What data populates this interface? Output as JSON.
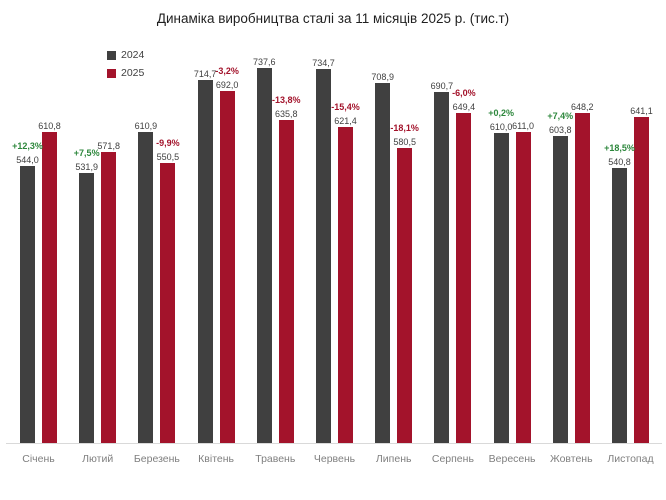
{
  "title": "Динаміка виробництва сталі за 11 місяців 2025 р. (тис.т)",
  "colors": {
    "bar_2024": "#404040",
    "bar_2025": "#a3132b",
    "positive_pct": "#2d873c",
    "negative_pct": "#a3132b",
    "value_label": "#404040",
    "axis_label": "#7f7f7f",
    "baseline": "#d9d9d9"
  },
  "legend": {
    "items": [
      {
        "label": "2024",
        "color": "#404040"
      },
      {
        "label": "2025",
        "color": "#a3132b"
      }
    ]
  },
  "chart_data": {
    "type": "bar",
    "title": "Динаміка виробництва сталі за 11 місяців 2025 р. (тис.т)",
    "categories": [
      "Січень",
      "Лютий",
      "Березень",
      "Квітень",
      "Травень",
      "Червень",
      "Липень",
      "Серпень",
      "Вересень",
      "Жовтень",
      "Листопад"
    ],
    "series": [
      {
        "name": "2024",
        "color": "#404040",
        "values": [
          544.0,
          531.9,
          610.9,
          714.7,
          737.6,
          734.7,
          708.9,
          690.7,
          610.0,
          603.8,
          540.8
        ]
      },
      {
        "name": "2025",
        "color": "#a3132b",
        "values": [
          610.8,
          571.8,
          550.5,
          692.0,
          635.8,
          621.4,
          580.5,
          649.4,
          611.0,
          648.2,
          641.1
        ]
      }
    ],
    "pct_change": [
      "+12,3%",
      "+7,5%",
      "-9,9%",
      "-3,2%",
      "-13,8%",
      "-15,4%",
      "-18,1%",
      "-6,0%",
      "+0,2%",
      "+7,4%",
      "+18,5%"
    ],
    "decimal_separator": ",",
    "xlabel": "",
    "ylabel": "",
    "ylim": [
      0,
      760
    ],
    "grid": false,
    "legend_position": "top-left"
  }
}
